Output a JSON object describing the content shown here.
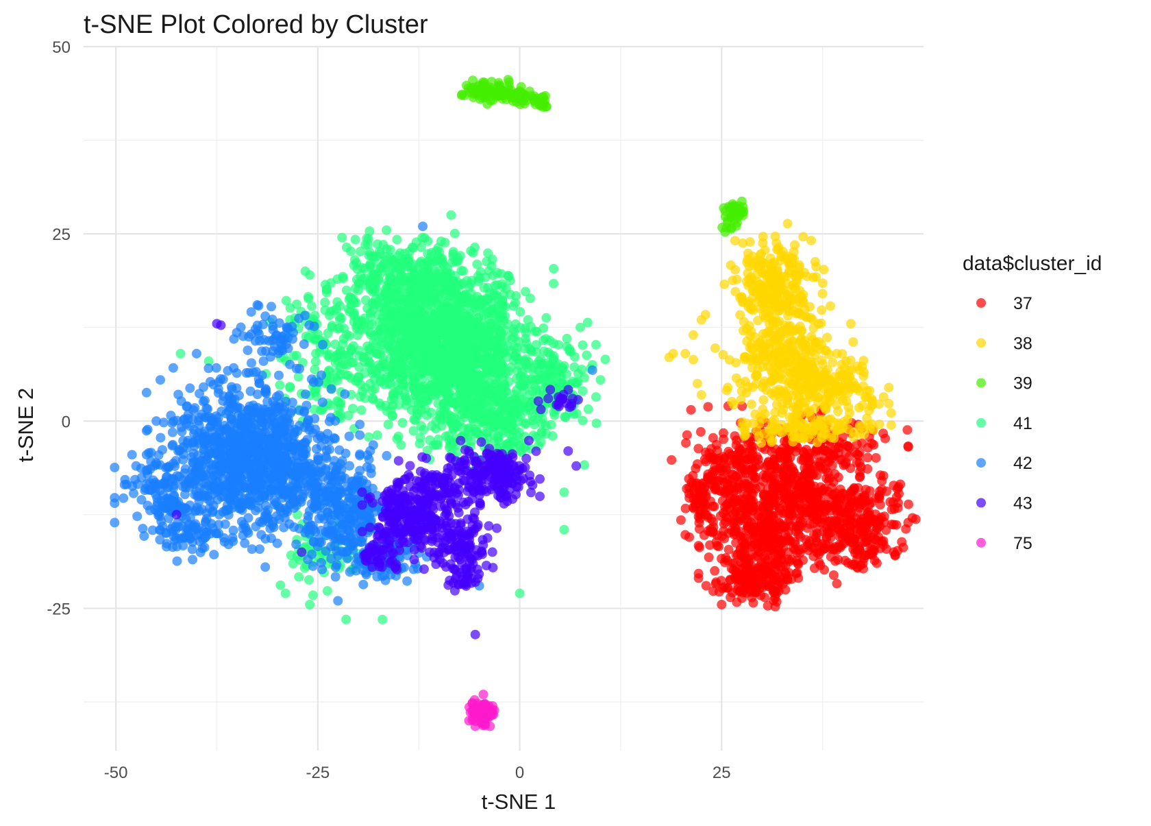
{
  "chart_data": {
    "type": "scatter",
    "title": "t-SNE Plot Colored by Cluster",
    "xlabel": "t-SNE 1",
    "ylabel": "t-SNE 2",
    "xlim": [
      -54,
      50
    ],
    "ylim": [
      -44,
      50
    ],
    "x_ticks": [
      -50,
      -25,
      0,
      25
    ],
    "y_ticks": [
      -25,
      0,
      25,
      50
    ],
    "x_tick_labels": [
      "-50",
      "-25",
      "0",
      "25"
    ],
    "y_tick_labels": [
      "-25",
      "0",
      "25",
      "50"
    ],
    "grid": true,
    "legend_position": "right",
    "legend_title": "data$cluster_id",
    "point_alpha": 0.7,
    "series": [
      {
        "name": "37",
        "color": "#FF0000",
        "approx_count": 1350,
        "clusters": [
          {
            "center": [
              26.5,
              -9
            ],
            "spread": [
              3.5,
              5
            ],
            "count": 220
          },
          {
            "center": [
              30.5,
              -15
            ],
            "spread": [
              3.8,
              4.5
            ],
            "count": 330
          },
          {
            "center": [
              36,
              -10
            ],
            "spread": [
              3.5,
              4
            ],
            "count": 200
          },
          {
            "center": [
              42,
              -14
            ],
            "spread": [
              3.2,
              3.5
            ],
            "count": 260
          },
          {
            "center": [
              36,
              -4
            ],
            "spread": [
              5.5,
              2.5
            ],
            "count": 180
          },
          {
            "center": [
              29,
              -21
            ],
            "spread": [
              2.5,
              1.8
            ],
            "count": 120
          },
          {
            "center": [
              22,
              -10
            ],
            "spread": [
              1,
              2
            ],
            "count": 40
          }
        ],
        "points": [
          [
            21,
            -15.5
          ],
          [
            20.5,
            -15.2
          ],
          [
            21.2,
            1.5
          ],
          [
            25,
            -24.5
          ],
          [
            42.5,
            -19
          ]
        ]
      },
      {
        "name": "38",
        "color": "#FFD700",
        "approx_count": 800,
        "clusters": [
          {
            "center": [
              31.5,
              18
            ],
            "spread": [
              2.8,
              3.8
            ],
            "count": 260
          },
          {
            "center": [
              33,
              8
            ],
            "spread": [
              4,
              4
            ],
            "count": 270
          },
          {
            "center": [
              38,
              4
            ],
            "spread": [
              3.5,
              3
            ],
            "count": 160
          },
          {
            "center": [
              35,
              -1
            ],
            "spread": [
              5,
              1.2
            ],
            "count": 90
          }
        ],
        "points": [
          [
            19,
            9
          ],
          [
            20.5,
            9
          ],
          [
            18.5,
            8.5
          ],
          [
            21.5,
            8.2
          ],
          [
            22.5,
            13.5
          ],
          [
            23,
            14.2
          ],
          [
            21.5,
            11.5
          ],
          [
            37.5,
            17
          ],
          [
            41,
            13
          ],
          [
            43.5,
            2
          ],
          [
            26.5,
            27.5
          ],
          [
            22,
            5
          ],
          [
            22.5,
            3.5
          ]
        ]
      },
      {
        "name": "39",
        "color": "#44EE00",
        "approx_count": 180,
        "clusters": [
          {
            "center": [
              -4,
              44.3
            ],
            "spread": [
              1.8,
              0.9
            ],
            "count": 70
          },
          {
            "center": [
              0,
              43.5
            ],
            "spread": [
              1.5,
              0.6
            ],
            "count": 45
          },
          {
            "center": [
              2.5,
              42.6
            ],
            "spread": [
              0.8,
              0.4
            ],
            "count": 15
          },
          {
            "center": [
              26.5,
              27.5
            ],
            "spread": [
              1,
              1.2
            ],
            "count": 45
          }
        ],
        "points": []
      },
      {
        "name": "41",
        "color": "#22FF7E",
        "approx_count": 2400,
        "clusters": [
          {
            "center": [
              -9,
              10
            ],
            "spread": [
              6,
              6
            ],
            "count": 1300
          },
          {
            "center": [
              -14,
              19
            ],
            "spread": [
              4.5,
              3
            ],
            "count": 300
          },
          {
            "center": [
              -3,
              1
            ],
            "spread": [
              5,
              3.5
            ],
            "count": 320
          },
          {
            "center": [
              -23,
              9
            ],
            "spread": [
              4,
              5
            ],
            "count": 180
          },
          {
            "center": [
              -24,
              -18
            ],
            "spread": [
              3.5,
              2.5
            ],
            "count": 60
          },
          {
            "center": [
              4,
              6
            ],
            "spread": [
              3,
              4
            ],
            "count": 110
          }
        ],
        "points": [
          [
            -42,
            9
          ],
          [
            -38.5,
            8
          ],
          [
            -26,
            19.5
          ],
          [
            -22,
            24.5
          ],
          [
            -17,
            -26.5
          ],
          [
            -21.5,
            -26.5
          ],
          [
            -26,
            -24.5
          ],
          [
            -29,
            -23
          ],
          [
            10,
            5.5
          ],
          [
            9,
            7.5
          ],
          [
            7.5,
            12.5
          ],
          [
            5.5,
            -9.5
          ],
          [
            0,
            -23
          ],
          [
            5.5,
            -14.5
          ],
          [
            -8.5,
            27.5
          ],
          [
            -16.5,
            25.5
          ]
        ]
      },
      {
        "name": "42",
        "color": "#1A7FFF",
        "approx_count": 1700,
        "clusters": [
          {
            "center": [
              -33,
              -5
            ],
            "spread": [
              6,
              5.5
            ],
            "count": 1050
          },
          {
            "center": [
              -44,
              -9
            ],
            "spread": [
              2.8,
              3.5
            ],
            "count": 120
          },
          {
            "center": [
              -41,
              -15
            ],
            "spread": [
              2.5,
              2
            ],
            "count": 70
          },
          {
            "center": [
              -22,
              -12
            ],
            "spread": [
              3.5,
              4
            ],
            "count": 280
          },
          {
            "center": [
              -17,
              -18
            ],
            "spread": [
              2.5,
              2
            ],
            "count": 80
          },
          {
            "center": [
              -30,
              11
            ],
            "spread": [
              3,
              2
            ],
            "count": 60
          }
        ],
        "points": [
          [
            -32.5,
            15.5
          ],
          [
            -31.5,
            14
          ],
          [
            -48,
            -4.5
          ],
          [
            -47.5,
            -6
          ],
          [
            -44.5,
            5.5
          ],
          [
            -45,
            0
          ],
          [
            -40,
            9
          ],
          [
            -40.5,
            -18.5
          ],
          [
            -31.5,
            -19.5
          ],
          [
            -22.5,
            -24
          ],
          [
            -12,
            26
          ],
          [
            -19,
            -20.5
          ],
          [
            -5,
            -22
          ],
          [
            9,
            6.8
          ],
          [
            -38,
            -12
          ]
        ]
      },
      {
        "name": "43",
        "color": "#4400FF",
        "approx_count": 750,
        "clusters": [
          {
            "center": [
              -14,
              -13
            ],
            "spread": [
              2.5,
              2.5
            ],
            "count": 220
          },
          {
            "center": [
              -3,
              -7
            ],
            "spread": [
              2.5,
              2
            ],
            "count": 180
          },
          {
            "center": [
              -8,
              -16
            ],
            "spread": [
              2.5,
              2.5
            ],
            "count": 120
          },
          {
            "center": [
              -10,
              -9
            ],
            "spread": [
              3,
              2
            ],
            "count": 110
          },
          {
            "center": [
              -17,
              -18
            ],
            "spread": [
              1.8,
              1.2
            ],
            "count": 40
          },
          {
            "center": [
              -7,
              -21
            ],
            "spread": [
              1.5,
              1
            ],
            "count": 30
          },
          {
            "center": [
              5,
              3
            ],
            "spread": [
              1.5,
              1
            ],
            "count": 20
          }
        ],
        "points": [
          [
            -5.5,
            -28.5
          ],
          [
            -37.5,
            13
          ],
          [
            -37,
            12.8
          ],
          [
            -27,
            -17.5
          ],
          [
            -42.5,
            -12.5
          ],
          [
            -5.5,
            -21.5
          ],
          [
            7,
            -6
          ],
          [
            6,
            -4
          ]
        ]
      },
      {
        "name": "75",
        "color": "#FF1ACD",
        "approx_count": 110,
        "clusters": [
          {
            "center": [
              -4.7,
              -39
            ],
            "spread": [
              0.8,
              0.8
            ],
            "count": 110
          }
        ],
        "points": [
          [
            -4.5,
            -36.5
          ]
        ]
      }
    ]
  }
}
